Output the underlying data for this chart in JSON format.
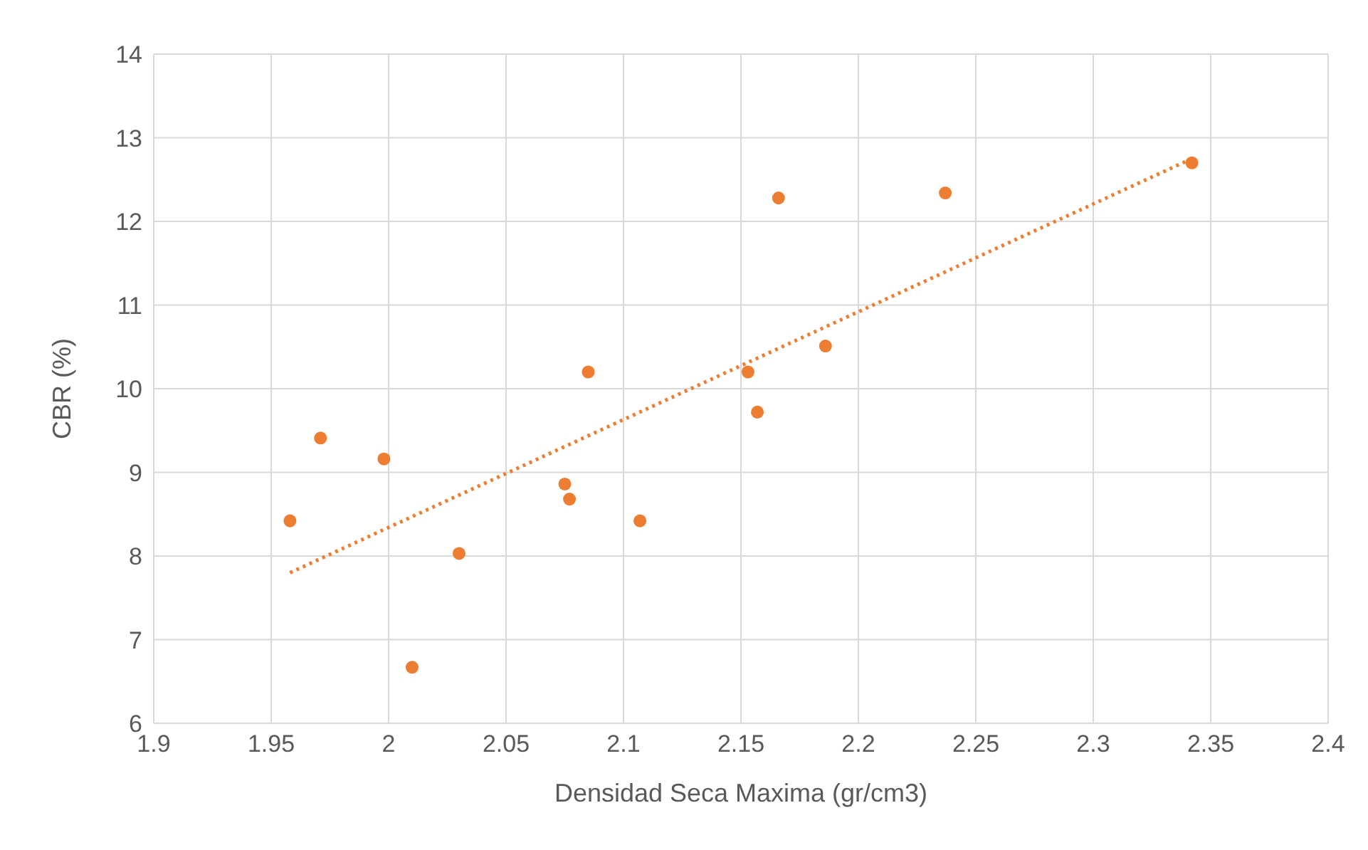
{
  "chart_data": {
    "type": "scatter",
    "xlabel": "Densidad Seca Maxima (gr/cm3)",
    "ylabel": "CBR (%)",
    "xlim": [
      1.9,
      2.4
    ],
    "xticks": [
      1.9,
      1.95,
      2,
      2.05,
      2.1,
      2.15,
      2.2,
      2.25,
      2.3,
      2.35,
      2.4
    ],
    "ylim": [
      6,
      14
    ],
    "yticks": [
      6,
      7,
      8,
      9,
      10,
      11,
      12,
      13,
      14
    ],
    "grid": true,
    "series": [
      {
        "color": "#ed7d31",
        "marker": "circle",
        "x": [
          1.958,
          1.971,
          1.998,
          2.01,
          2.03,
          2.075,
          2.077,
          2.085,
          2.107,
          2.153,
          2.157,
          2.166,
          2.186,
          2.237,
          2.342
        ],
        "values": [
          8.42,
          9.41,
          9.16,
          6.67,
          8.03,
          8.86,
          8.68,
          10.2,
          8.42,
          10.2,
          9.72,
          12.28,
          10.51,
          12.34,
          12.7
        ]
      },
      {
        "type": "line",
        "marker": "none",
        "color": "#ed7d31",
        "line_style": "dotted",
        "x": [
          1.958,
          2.342
        ],
        "values": [
          7.8,
          12.75
        ]
      }
    ]
  }
}
